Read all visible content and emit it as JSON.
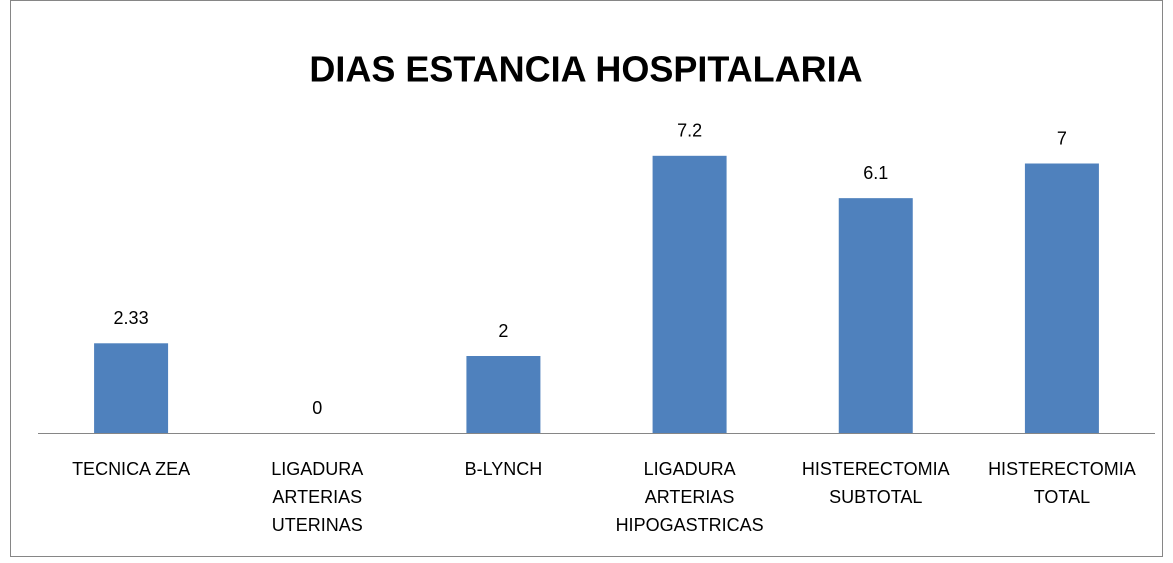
{
  "chart_data": {
    "type": "bar",
    "title": "DIAS ESTANCIA HOSPITALARIA",
    "categories": [
      "TECNICA ZEA",
      "LIGADURA ARTERIAS UTERINAS",
      "B-LYNCH",
      "LIGADURA ARTERIAS HIPOGASTRICAS",
      "HISTERECTOMIA SUBTOTAL",
      "HISTERECTOMIA TOTAL"
    ],
    "values": [
      2.33,
      0,
      2,
      7.2,
      6.1,
      7
    ],
    "color": "#4f81bd",
    "grid": false
  }
}
